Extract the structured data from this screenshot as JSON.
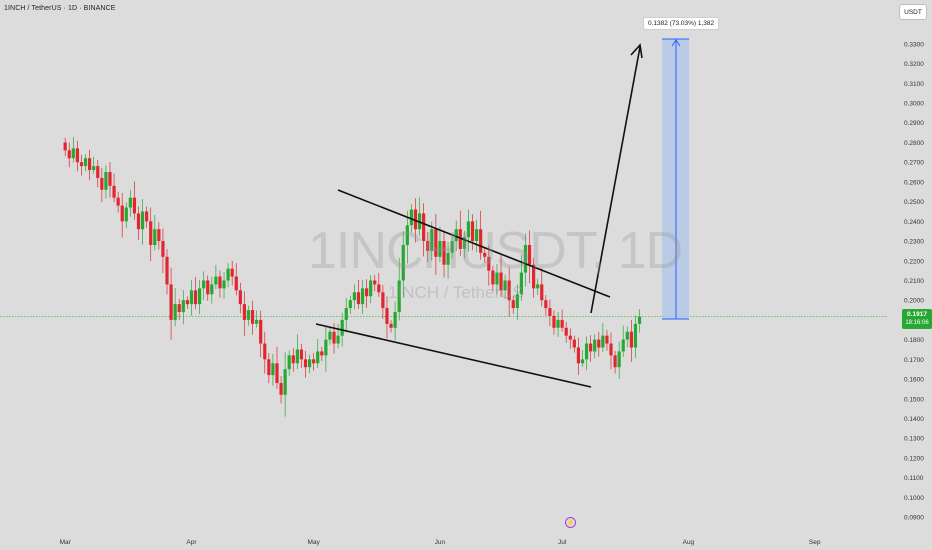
{
  "header": {
    "ticker": "1INCH / TetherUS · 1D · BINANCE",
    "currency_button": "USDT"
  },
  "watermark": {
    "symbol": "1INCHUSDT, 1D",
    "pair": "1INCH / TetherUS"
  },
  "price_tag": {
    "price": "0.1917",
    "countdown": "18:16:06"
  },
  "measure_label": "0.1382 (73.03%) 1,382",
  "colors": {
    "up": "#26a832",
    "down": "#e0262f",
    "background": "#dcdcdc",
    "measure_fill": "#b4c8e8",
    "measure_line": "#2962ff",
    "price_line": "#26a832"
  },
  "chart_data": {
    "type": "candlestick",
    "title": "",
    "x_tick_labels": [
      "Mar",
      "Apr",
      "May",
      "Jun",
      "Jul",
      "Aug",
      "Sep"
    ],
    "x_ticks_index": [
      0,
      31,
      61,
      92,
      122,
      153,
      184
    ],
    "y_tick_labels": [
      "0.3300",
      "0.3200",
      "0.3100",
      "0.3000",
      "0.2900",
      "0.2800",
      "0.2700",
      "0.2600",
      "0.2500",
      "0.2400",
      "0.2300",
      "0.2200",
      "0.2100",
      "0.2000",
      "0.1900",
      "0.1800",
      "0.1700",
      "0.1600",
      "0.1500",
      "0.1400",
      "0.1300",
      "0.1200",
      "0.1100",
      "0.1000",
      "0.0900"
    ],
    "ylim": [
      0.088,
      0.334
    ],
    "xlim_days": [
      -16,
      202
    ],
    "grid": false,
    "last_price": 0.1917,
    "closes": [
      0.276,
      0.272,
      0.277,
      0.27,
      0.268,
      0.272,
      0.266,
      0.268,
      0.262,
      0.256,
      0.265,
      0.258,
      0.252,
      0.248,
      0.24,
      0.247,
      0.252,
      0.244,
      0.236,
      0.245,
      0.24,
      0.228,
      0.236,
      0.23,
      0.222,
      0.208,
      0.19,
      0.198,
      0.194,
      0.2,
      0.198,
      0.205,
      0.198,
      0.206,
      0.21,
      0.203,
      0.208,
      0.212,
      0.206,
      0.21,
      0.216,
      0.212,
      0.205,
      0.198,
      0.19,
      0.195,
      0.188,
      0.19,
      0.178,
      0.17,
      0.162,
      0.168,
      0.158,
      0.152,
      0.165,
      0.172,
      0.168,
      0.175,
      0.17,
      0.166,
      0.17,
      0.168,
      0.174,
      0.172,
      0.18,
      0.184,
      0.178,
      0.182,
      0.19,
      0.196,
      0.2,
      0.204,
      0.198,
      0.206,
      0.202,
      0.21,
      0.208,
      0.204,
      0.196,
      0.188,
      0.186,
      0.194,
      0.21,
      0.228,
      0.238,
      0.246,
      0.236,
      0.244,
      0.23,
      0.225,
      0.236,
      0.222,
      0.23,
      0.218,
      0.224,
      0.23,
      0.236,
      0.226,
      0.232,
      0.24,
      0.23,
      0.236,
      0.224,
      0.222,
      0.215,
      0.208,
      0.214,
      0.205,
      0.21,
      0.2,
      0.196,
      0.203,
      0.214,
      0.228,
      0.218,
      0.206,
      0.208,
      0.2,
      0.196,
      0.192,
      0.186,
      0.19,
      0.186,
      0.182,
      0.18,
      0.176,
      0.168,
      0.17,
      0.178,
      0.174,
      0.18,
      0.176,
      0.182,
      0.178,
      0.172,
      0.166,
      0.174,
      0.18,
      0.184,
      0.176,
      0.188,
      0.1917
    ]
  }
}
